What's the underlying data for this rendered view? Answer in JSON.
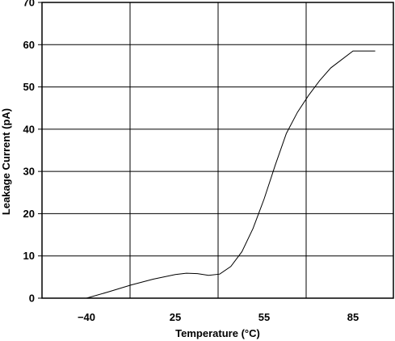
{
  "chart_data": {
    "type": "line",
    "title": "",
    "xlabel": "Temperature (°C)",
    "ylabel": "Leakage Current (pA)",
    "x_tick_labels": [
      "−40",
      "25",
      "55",
      "85"
    ],
    "y_ticks": [
      0,
      10,
      20,
      30,
      40,
      50,
      60,
      70
    ],
    "ylim": [
      0,
      70
    ],
    "grid": true,
    "legend": "none",
    "colors": {
      "line": "#000000",
      "grid": "#000000",
      "frame": "#000000"
    },
    "series": [
      {
        "x_category_pos": [
          0.0,
          0.5,
          1.0,
          1.5,
          2.0,
          2.25,
          2.5,
          2.75,
          3.0,
          3.25,
          3.5,
          3.75,
          4.0,
          4.25,
          4.5,
          4.75,
          5.0,
          5.25,
          5.5,
          6.0,
          6.5
        ],
        "values": [
          0.0,
          1.5,
          3.1,
          4.5,
          5.6,
          5.9,
          5.8,
          5.4,
          5.7,
          7.5,
          11.0,
          16.5,
          23.5,
          31.5,
          39.0,
          44.0,
          48.0,
          51.5,
          54.5,
          58.5,
          58.5
        ]
      }
    ]
  }
}
